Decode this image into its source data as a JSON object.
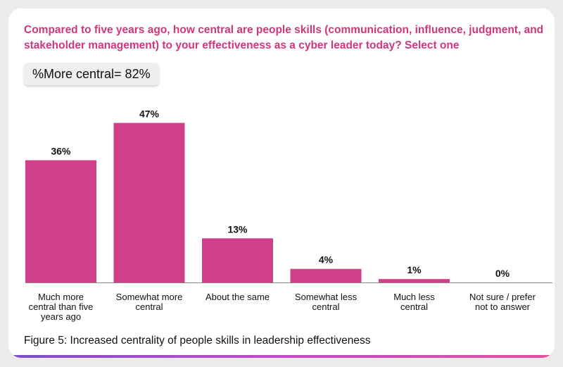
{
  "title": "Compared to five years ago, how central are people skills (communication, influence, judgment, and stakeholder management) to your effectiveness as a cyber leader today? Select one",
  "highlight": "%More central= 82%",
  "caption": "Figure 5: Increased centrality of people skills in leadership effectiveness",
  "colors": {
    "bar": "#cf3f8a",
    "title": "#d0367c",
    "baseline": "#888888"
  },
  "chart_data": {
    "type": "bar",
    "categories": [
      [
        "Much more",
        "central than five",
        "years ago"
      ],
      [
        "Somewhat more",
        "central"
      ],
      [
        "About the same"
      ],
      [
        "Somewhat less",
        "central"
      ],
      [
        "Much less",
        "central"
      ],
      [
        "Not sure / prefer",
        "not to answer"
      ]
    ],
    "values": [
      36,
      47,
      13,
      4,
      1,
      0
    ],
    "data_labels": [
      "36%",
      "47%",
      "13%",
      "4%",
      "1%",
      "0%"
    ],
    "ylim": [
      0,
      50
    ],
    "xlabel": "",
    "ylabel": "",
    "grid": false
  }
}
